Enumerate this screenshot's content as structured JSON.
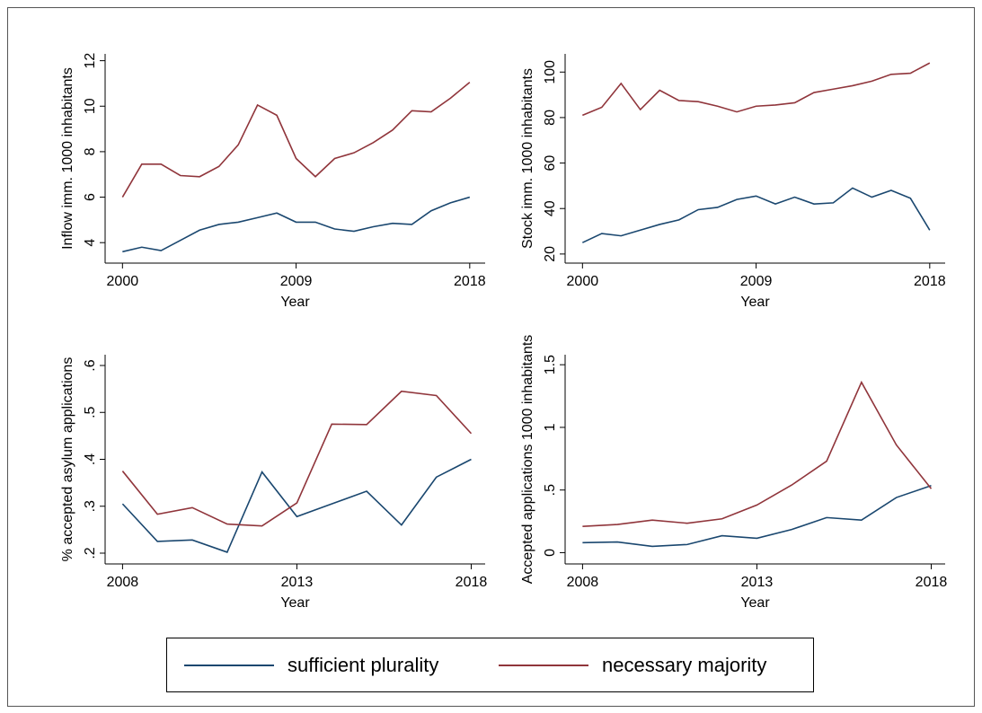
{
  "chart_data": [
    {
      "type": "line",
      "ylabel": "Inflow imm. 1000 inhabitants",
      "xlabel": "Year",
      "x": [
        2000,
        2001,
        2002,
        2003,
        2004,
        2005,
        2006,
        2007,
        2008,
        2009,
        2010,
        2011,
        2012,
        2013,
        2014,
        2015,
        2016,
        2017,
        2018
      ],
      "xlim": [
        1999.1,
        2018.8
      ],
      "xticks": [
        2000,
        2009,
        2018
      ],
      "ylim": [
        3.1,
        12.3
      ],
      "yticks": [
        4,
        6,
        8,
        10,
        12
      ],
      "series": [
        {
          "name": "sufficient plurality",
          "color": "#1a476f",
          "values": [
            3.6,
            3.8,
            3.65,
            4.1,
            4.55,
            4.8,
            4.9,
            5.1,
            5.3,
            4.9,
            4.9,
            4.6,
            4.5,
            4.7,
            4.85,
            4.8,
            5.4,
            5.75,
            6.0
          ]
        },
        {
          "name": "necessary majority",
          "color": "#90353b",
          "values": [
            6.0,
            7.45,
            7.45,
            6.95,
            6.9,
            7.35,
            8.3,
            10.05,
            9.6,
            7.7,
            6.9,
            7.7,
            7.95,
            8.4,
            8.95,
            9.8,
            9.75,
            10.35,
            11.05
          ]
        }
      ]
    },
    {
      "type": "line",
      "ylabel": "Stock imm. 1000 inhabitants",
      "xlabel": "Year",
      "x": [
        2000,
        2001,
        2002,
        2003,
        2004,
        2005,
        2006,
        2007,
        2008,
        2009,
        2010,
        2011,
        2012,
        2013,
        2014,
        2015,
        2016,
        2017,
        2018
      ],
      "xlim": [
        1999.1,
        2018.8
      ],
      "xticks": [
        2000,
        2009,
        2018
      ],
      "ylim": [
        16,
        108
      ],
      "yticks": [
        20,
        40,
        60,
        80,
        100
      ],
      "series": [
        {
          "color": "#1a476f",
          "values": [
            25,
            29,
            28,
            30.5,
            33,
            35,
            39.5,
            40.5,
            44,
            45.5,
            42,
            45,
            42,
            42.5,
            49,
            45,
            48,
            44.5,
            30.5
          ]
        },
        {
          "color": "#90353b",
          "values": [
            81,
            84.5,
            95,
            83.5,
            92,
            87.5,
            87,
            85,
            82.5,
            85,
            85.5,
            86.5,
            91,
            92.5,
            94,
            96,
            99,
            99.5,
            104
          ]
        }
      ]
    },
    {
      "type": "line",
      "ylabel": "% accepted asylum applications",
      "xlabel": "Year",
      "x": [
        2008,
        2009,
        2010,
        2011,
        2012,
        2013,
        2014,
        2015,
        2016,
        2017,
        2018
      ],
      "xlim": [
        2007.5,
        2018.4
      ],
      "xticks": [
        2008,
        2013,
        2018
      ],
      "ylim": [
        0.177,
        0.623
      ],
      "yticks": [
        {
          "value": 0.2,
          "label": ".2"
        },
        {
          "value": 0.3,
          "label": ".3"
        },
        {
          "value": 0.4,
          "label": ".4"
        },
        {
          "value": 0.5,
          "label": ".5"
        },
        {
          "value": 0.6,
          "label": ".6"
        }
      ],
      "series": [
        {
          "color": "#1a476f",
          "values": [
            0.305,
            0.225,
            0.228,
            0.202,
            0.373,
            0.278,
            0.305,
            0.332,
            0.26,
            0.362,
            0.4
          ]
        },
        {
          "color": "#90353b",
          "values": [
            0.375,
            0.283,
            0.297,
            0.262,
            0.258,
            0.307,
            0.475,
            0.474,
            0.545,
            0.536,
            0.455
          ]
        }
      ]
    },
    {
      "type": "line",
      "ylabel": "Accepted applications 1000 inhabitants",
      "xlabel": "Year",
      "x": [
        2008,
        2009,
        2010,
        2011,
        2012,
        2013,
        2014,
        2015,
        2016,
        2017,
        2018
      ],
      "xlim": [
        2007.5,
        2018.4
      ],
      "xticks": [
        2008,
        2013,
        2018
      ],
      "ylim": [
        -0.09,
        1.58
      ],
      "yticks": [
        0,
        {
          "value": 0.5,
          "label": ".5"
        },
        1,
        1.5
      ],
      "series": [
        {
          "color": "#1a476f",
          "values": [
            0.08,
            0.085,
            0.05,
            0.065,
            0.135,
            0.115,
            0.185,
            0.28,
            0.26,
            0.44,
            0.535
          ]
        },
        {
          "color": "#90353b",
          "values": [
            0.21,
            0.225,
            0.26,
            0.235,
            0.27,
            0.38,
            0.54,
            0.73,
            1.36,
            0.86,
            0.51
          ]
        }
      ]
    }
  ]
}
